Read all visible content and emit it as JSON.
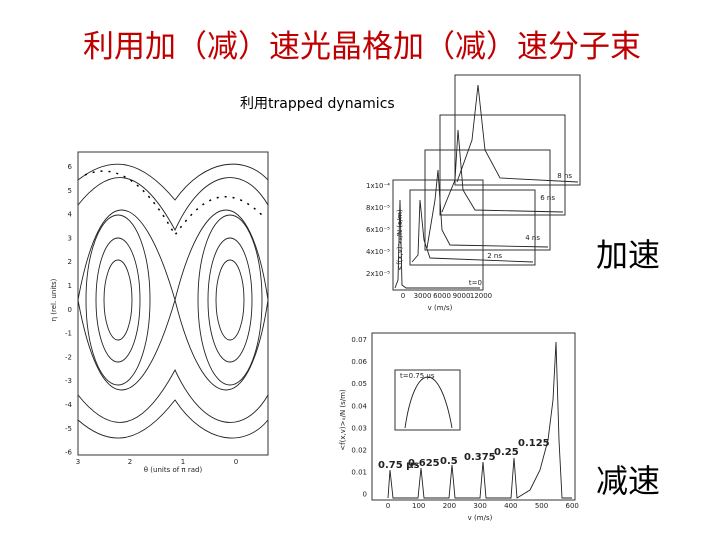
{
  "title": "利用加（减）速光晶格加（减）速分子束",
  "subtitle": "利用trapped dynamics",
  "labels": {
    "accelerate": "加速",
    "decelerate": "减速"
  },
  "phase_plot": {
    "ylabel": "η (rel. units)",
    "xlabel": "θ (units of π rad)",
    "yticks": [
      "6",
      "5",
      "4",
      "3",
      "2",
      "1",
      "0",
      "-1",
      "-2",
      "-3",
      "-4",
      "-5",
      "-6"
    ],
    "xticks": [
      "3",
      "2",
      "1",
      "0"
    ]
  },
  "accel_plot": {
    "xlabel": "v (m/s)",
    "ylabel": "<f(x,v)>ₓ/N (s/m)",
    "xticks": [
      "0",
      "3000",
      "6000",
      "9000",
      "12000"
    ],
    "yticks": [
      "1x10⁻⁴",
      "8x10⁻⁵",
      "6x10⁻⁵",
      "4x10⁻⁵",
      "2x10⁻⁵"
    ],
    "times": [
      "8 ns",
      "6 ns",
      "4 ns",
      "2 ns",
      "t=0"
    ]
  },
  "decel_plot": {
    "xlabel": "v (m/s)",
    "ylabel": "<f(x,v)>ₓ/N (s/m)",
    "yticks": [
      "0.07",
      "0.06",
      "0.05",
      "0.04",
      "0.03",
      "0.02",
      "0.01",
      "0"
    ],
    "xticks": [
      "0",
      "100",
      "200",
      "300",
      "400",
      "500",
      "600"
    ],
    "peak_labels": [
      "0.75 μs",
      "0.625",
      "0.5",
      "0.375",
      "0.25",
      "0.125"
    ],
    "inset_label": "t=0.75 μs"
  }
}
